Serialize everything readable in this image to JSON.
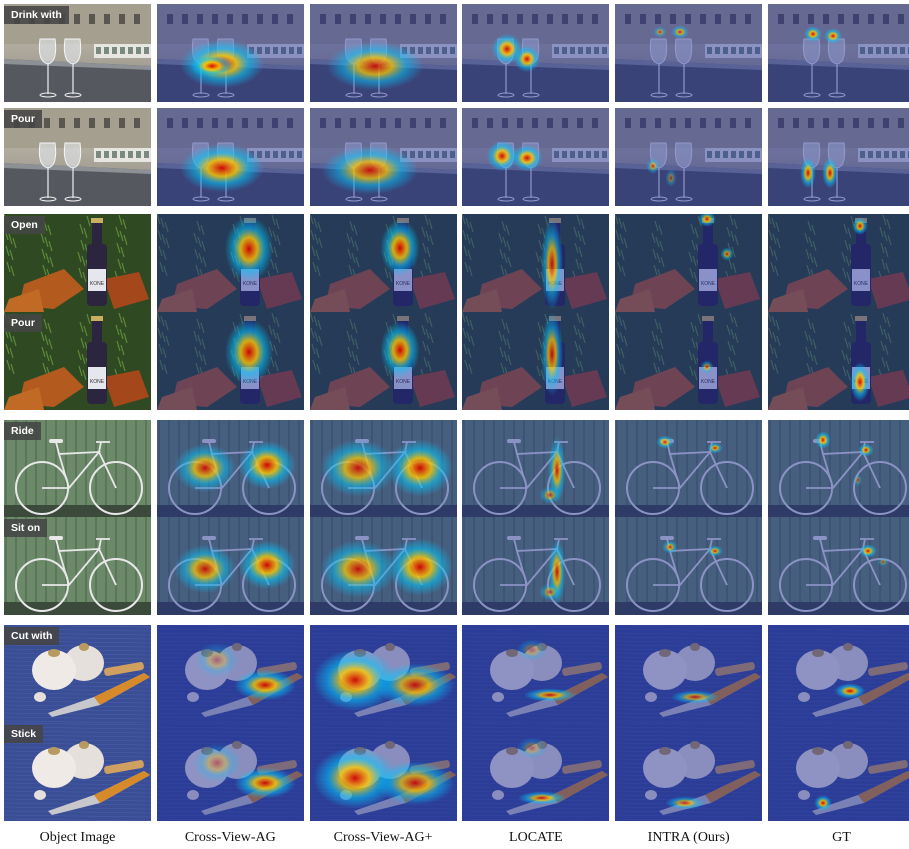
{
  "columns": [
    "Object Image",
    "Cross-View-AG",
    "Cross-View-AG+",
    "LOCATE",
    "INTRA (Ours)",
    "GT"
  ],
  "rows": [
    {
      "action": "Drink with",
      "scene": "wine-glasses"
    },
    {
      "action": "Pour",
      "scene": "wine-glasses"
    },
    {
      "action": "Open",
      "scene": "beer-bottle"
    },
    {
      "action": "Pour",
      "scene": "beer-bottle"
    },
    {
      "action": "Ride",
      "scene": "bicycle"
    },
    {
      "action": "Sit on",
      "scene": "bicycle"
    },
    {
      "action": "Cut with",
      "scene": "knife-garlic"
    },
    {
      "action": "Stick",
      "scene": "knife-garlic"
    }
  ],
  "colors": {
    "heat_hot": "#d40000",
    "heat_warm": "#ffcc00",
    "heat_cool": "#00c8ff",
    "heat_bg": "#1a2a9a"
  }
}
